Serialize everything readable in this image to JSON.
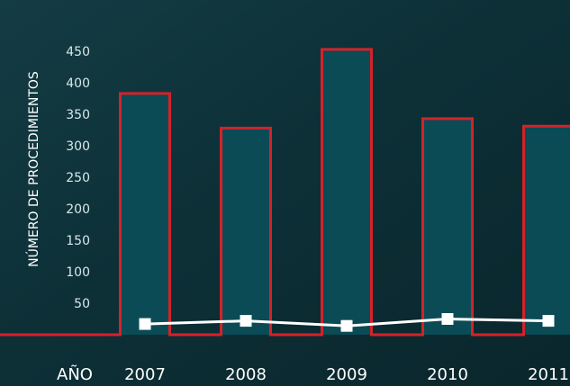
{
  "chart_data": {
    "type": "bar",
    "title": "",
    "xlabel": "AÑO",
    "ylabel": "NÚMERO DE PROCEDIMIENTOS",
    "categories": [
      "2007",
      "2008",
      "2009",
      "2010",
      "2011"
    ],
    "yticks": [
      50,
      100,
      150,
      200,
      250,
      300,
      350,
      400,
      450
    ],
    "ylim": [
      0,
      465
    ],
    "grid": false,
    "legend": "none",
    "series": [
      {
        "type": "bar",
        "values": [
          383,
          328,
          453,
          343,
          331
        ]
      },
      {
        "type": "line",
        "values": [
          17,
          22,
          14,
          25,
          22
        ]
      }
    ],
    "colors": {
      "background": "#0c2d33",
      "bar_fill": "#0b4b55",
      "bar_outline": "#d4222a",
      "line": "#ffffff",
      "marker": "#ffffff"
    }
  }
}
